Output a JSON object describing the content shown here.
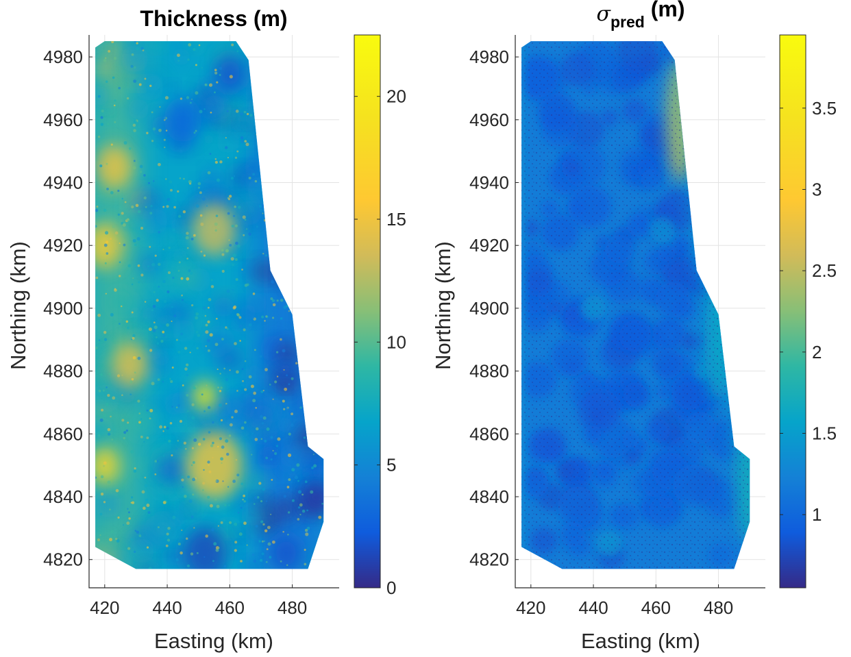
{
  "chart_data": [
    {
      "type": "heatmap",
      "title": "Thickness (m)",
      "xlabel": "Easting (km)",
      "ylabel": "Northing (km)",
      "xlim": [
        415,
        495
      ],
      "ylim": [
        4811,
        4987
      ],
      "xticks": [
        420,
        440,
        460,
        480
      ],
      "yticks": [
        4820,
        4840,
        4860,
        4880,
        4900,
        4920,
        4940,
        4960,
        4980
      ],
      "grid": true,
      "colormap": "parula",
      "colorbar": {
        "min": 0,
        "max": 22.5,
        "ticks": [
          0,
          5,
          10,
          15,
          20
        ]
      },
      "domain_outline": [
        [
          417,
          4983
        ],
        [
          420,
          4985
        ],
        [
          462,
          4985
        ],
        [
          466,
          4979
        ],
        [
          473,
          4912
        ],
        [
          480,
          4898
        ],
        [
          485,
          4856
        ],
        [
          490,
          4852
        ],
        [
          490,
          4832
        ],
        [
          485,
          4817
        ],
        [
          430,
          4817
        ],
        [
          417,
          4824
        ]
      ],
      "features": [
        {
          "kind": "low",
          "x": 445,
          "y": 4960,
          "r": 6,
          "value": 3
        },
        {
          "kind": "low",
          "x": 460,
          "y": 4975,
          "r": 5,
          "value": 2
        },
        {
          "kind": "low",
          "x": 452,
          "y": 4822,
          "r": 7,
          "value": 1.5
        },
        {
          "kind": "low",
          "x": 478,
          "y": 4822,
          "r": 5,
          "value": 2
        },
        {
          "kind": "low",
          "x": 488,
          "y": 4840,
          "r": 4,
          "value": 1
        },
        {
          "kind": "high",
          "x": 455,
          "y": 4850,
          "r": 9,
          "value": 17
        },
        {
          "kind": "high",
          "x": 455,
          "y": 4925,
          "r": 7,
          "value": 15
        },
        {
          "kind": "high",
          "x": 420,
          "y": 4850,
          "r": 5,
          "value": 19
        },
        {
          "kind": "high",
          "x": 420,
          "y": 4920,
          "r": 6,
          "value": 18
        },
        {
          "kind": "high",
          "x": 423,
          "y": 4945,
          "r": 6,
          "value": 17
        },
        {
          "kind": "high",
          "x": 428,
          "y": 4882,
          "r": 6,
          "value": 16
        },
        {
          "kind": "high",
          "x": 452,
          "y": 4872,
          "r": 4,
          "value": 20
        }
      ]
    },
    {
      "type": "heatmap",
      "title_symbol": "σ",
      "title_sub": "pred",
      "title_rest": " (m)",
      "xlabel": "Easting (km)",
      "ylabel": "Northing (km)",
      "xlim": [
        415,
        495
      ],
      "ylim": [
        4811,
        4987
      ],
      "xticks": [
        420,
        440,
        460,
        480
      ],
      "yticks": [
        4820,
        4840,
        4860,
        4880,
        4900,
        4920,
        4940,
        4960,
        4980
      ],
      "grid": true,
      "colormap": "parula",
      "colorbar": {
        "min": 0.55,
        "max": 3.95,
        "ticks": [
          1,
          1.5,
          2,
          2.5,
          3,
          3.5
        ]
      },
      "domain_outline": [
        [
          417,
          4983
        ],
        [
          420,
          4985
        ],
        [
          462,
          4985
        ],
        [
          466,
          4979
        ],
        [
          473,
          4912
        ],
        [
          480,
          4898
        ],
        [
          485,
          4856
        ],
        [
          490,
          4852
        ],
        [
          490,
          4832
        ],
        [
          485,
          4817
        ],
        [
          430,
          4817
        ],
        [
          417,
          4824
        ]
      ],
      "features": [
        {
          "kind": "edge-high",
          "x": 467,
          "y": 4960,
          "value": 2.6
        },
        {
          "kind": "edge-high",
          "x": 489,
          "y": 4845,
          "value": 1.8
        },
        {
          "kind": "edge-high",
          "x": 479,
          "y": 4890,
          "value": 1.7
        },
        {
          "kind": "halo",
          "x": 440,
          "y": 4900,
          "r": 4,
          "value": 1.5
        },
        {
          "kind": "halo",
          "x": 462,
          "y": 4925,
          "r": 4,
          "value": 1.4
        },
        {
          "kind": "halo",
          "x": 445,
          "y": 4825,
          "r": 4,
          "value": 1.5
        },
        {
          "kind": "halo",
          "x": 475,
          "y": 4880,
          "r": 3,
          "value": 1.4
        }
      ]
    }
  ]
}
